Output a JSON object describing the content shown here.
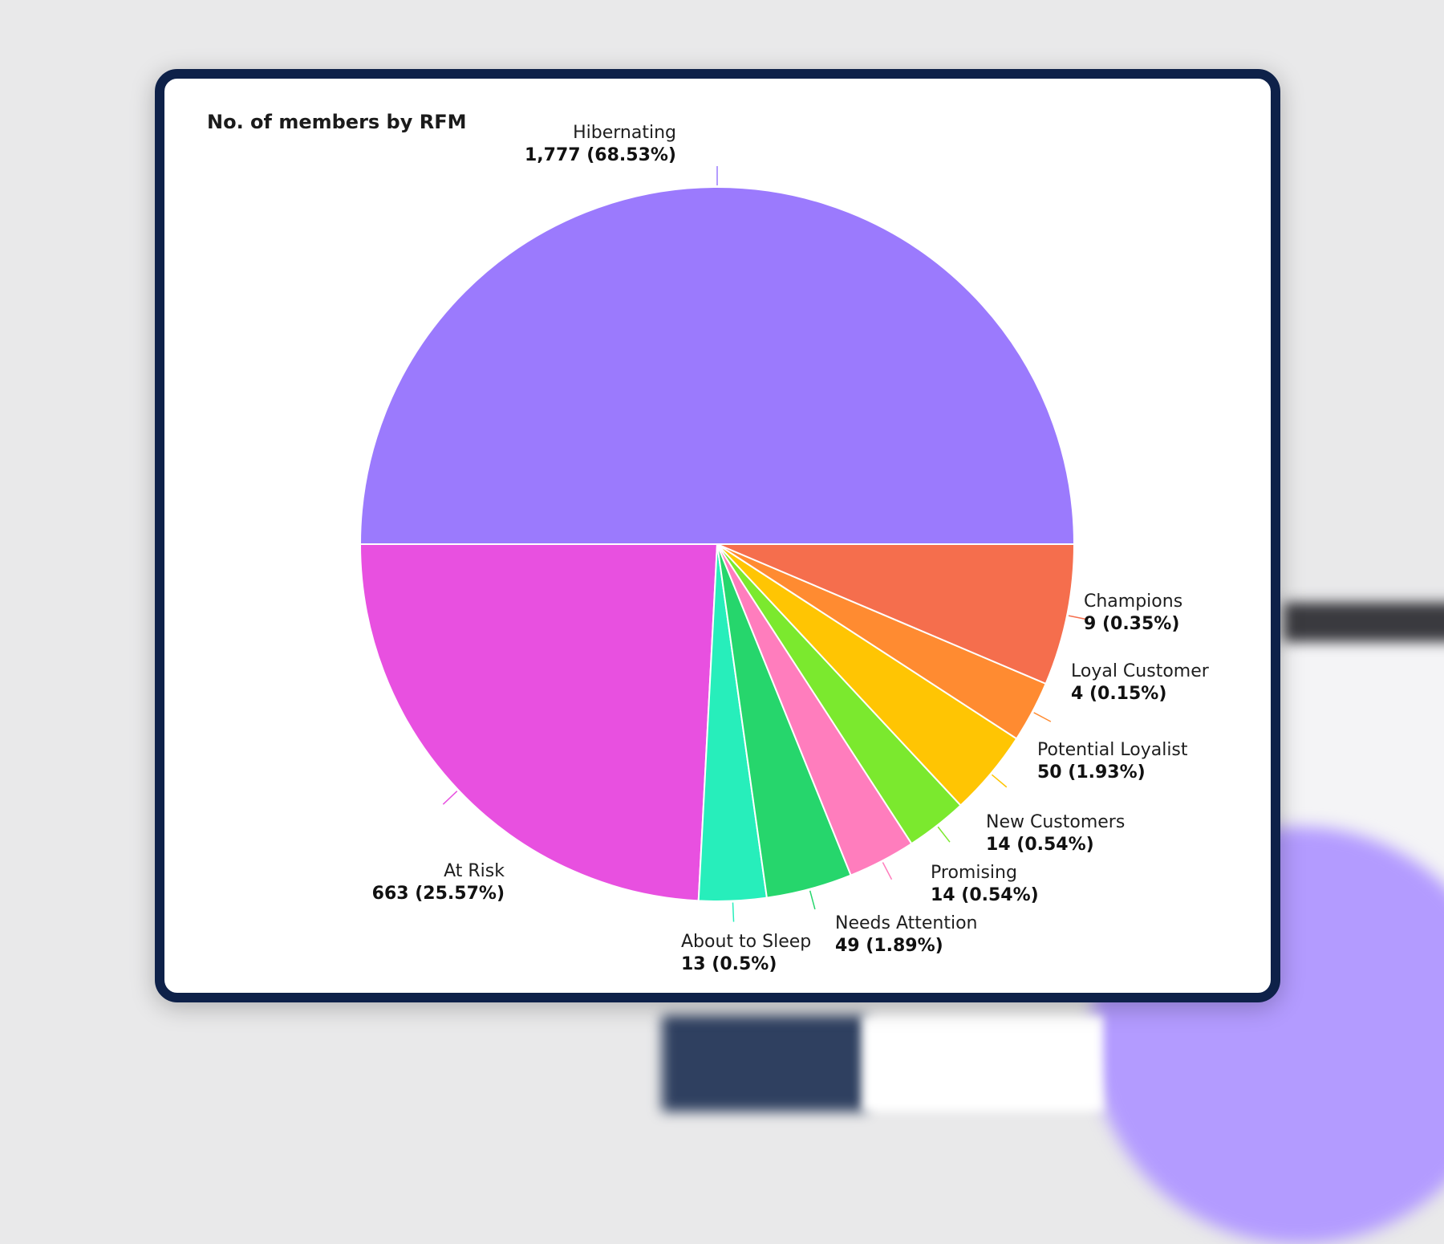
{
  "chart_data": {
    "type": "pie",
    "title": "No. of members by RFM",
    "slices": [
      {
        "label": "Hibernating",
        "value": 1777,
        "value_text": "1,777 (68.53%)",
        "percent": 68.53,
        "color": "#9b7afd"
      },
      {
        "label": "At Risk",
        "value": 663,
        "value_text": "663 (25.57%)",
        "percent": 25.57,
        "color": "#e850e0"
      },
      {
        "label": "About to Sleep",
        "value": 13,
        "value_text": "13 (0.5%)",
        "percent": 0.5,
        "color": "#27eebb"
      },
      {
        "label": "Needs Attention",
        "value": 49,
        "value_text": "49 (1.89%)",
        "percent": 1.89,
        "color": "#26d66c"
      },
      {
        "label": "Promising",
        "value": 14,
        "value_text": "14 (0.54%)",
        "percent": 0.54,
        "color": "#ff7dbd"
      },
      {
        "label": "New Customers",
        "value": 14,
        "value_text": "14 (0.54%)",
        "percent": 0.54,
        "color": "#7be92e"
      },
      {
        "label": "Potential Loyalist",
        "value": 50,
        "value_text": "50 (1.93%)",
        "percent": 1.93,
        "color": "#ffc503"
      },
      {
        "label": "Loyal Customer",
        "value": 4,
        "value_text": "4 (0.15%)",
        "percent": 0.15,
        "color": "#ff8b31"
      },
      {
        "label": "Champions",
        "value": 9,
        "value_text": "9 (0.35%)",
        "percent": 0.35,
        "color": "#f56e4d"
      }
    ]
  }
}
